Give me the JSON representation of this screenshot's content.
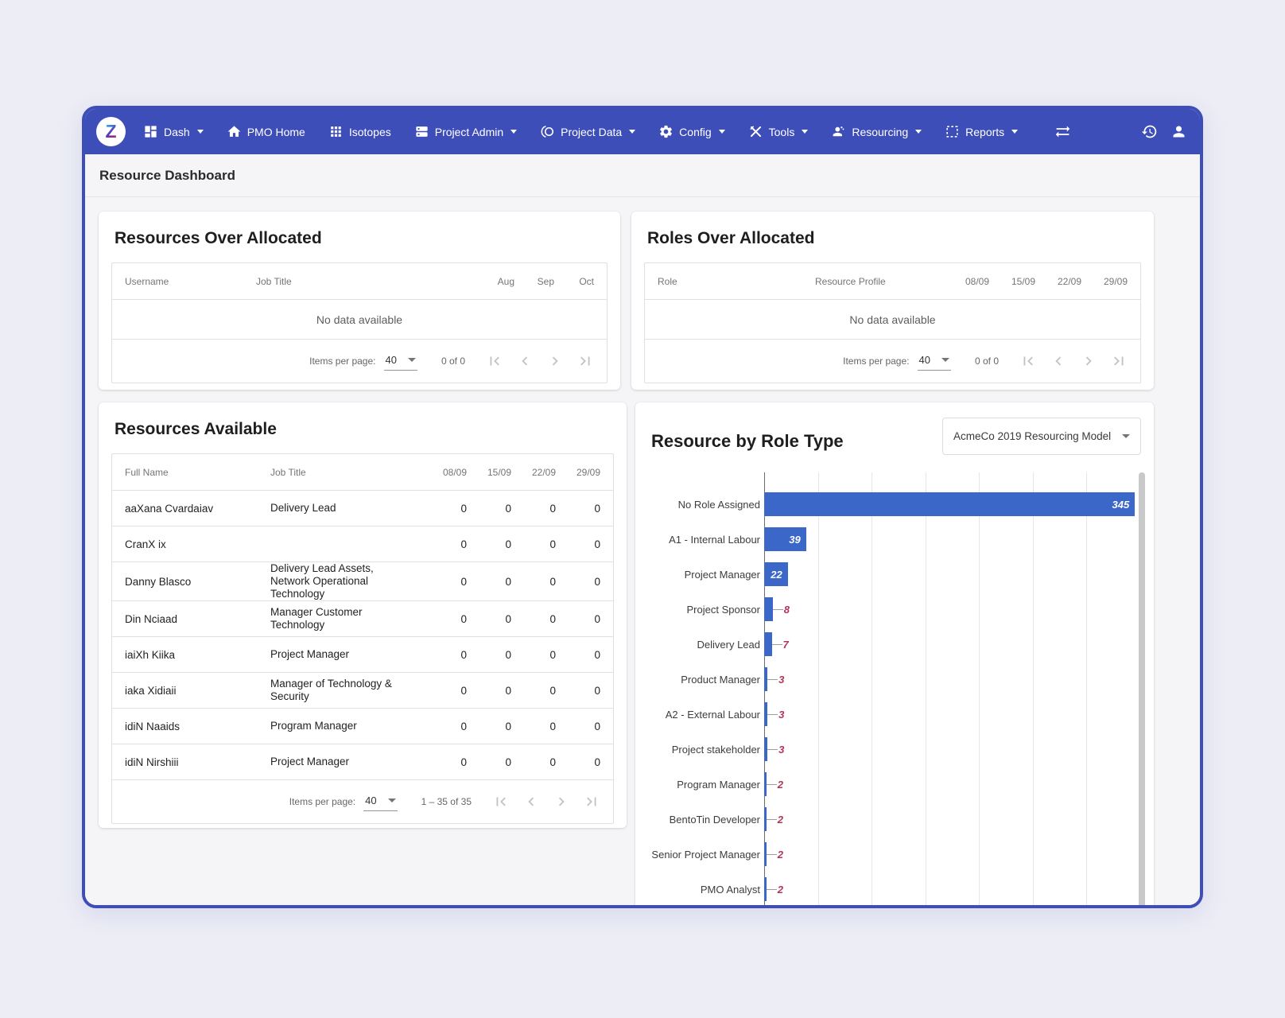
{
  "colors": {
    "accent": "#3e4eb8",
    "bar": "#3a67c8",
    "annotation_inside": "#ffffff",
    "annotation_outside": "#b23557"
  },
  "navbar": {
    "logo_letter": "Z",
    "items": [
      {
        "label": "Dash",
        "icon": "dashboard-icon",
        "dropdown": true
      },
      {
        "label": "PMO Home",
        "icon": "home-icon",
        "dropdown": false
      },
      {
        "label": "Isotopes",
        "icon": "apps-grid-icon",
        "dropdown": false
      },
      {
        "label": "Project Admin",
        "icon": "server-icon",
        "dropdown": true
      },
      {
        "label": "Project Data",
        "icon": "data-rings-icon",
        "dropdown": true
      },
      {
        "label": "Config",
        "icon": "gear-icon",
        "dropdown": true
      },
      {
        "label": "Tools",
        "icon": "tools-icon",
        "dropdown": true
      },
      {
        "label": "Resourcing",
        "icon": "people-icon",
        "dropdown": true
      },
      {
        "label": "Reports",
        "icon": "report-box-icon",
        "dropdown": true
      }
    ]
  },
  "page_title": "Resource Dashboard",
  "resources_over_allocated": {
    "title": "Resources Over Allocated",
    "columns": [
      "Username",
      "Job Title",
      "Aug",
      "Sep",
      "Oct"
    ],
    "empty_text": "No data available",
    "paginator": {
      "label": "Items per page:",
      "page_size": "40",
      "range": "0 of 0"
    }
  },
  "roles_over_allocated": {
    "title": "Roles Over Allocated",
    "columns": [
      "Role",
      "Resource Profile",
      "08/09",
      "15/09",
      "22/09",
      "29/09"
    ],
    "empty_text": "No data available",
    "paginator": {
      "label": "Items per page:",
      "page_size": "40",
      "range": "0 of 0"
    }
  },
  "resources_available": {
    "title": "Resources Available",
    "columns": [
      "Full Name",
      "Job Title",
      "08/09",
      "15/09",
      "22/09",
      "29/09"
    ],
    "rows": [
      {
        "full_name": "aaXana Cvardaiav",
        "job_title": "Delivery Lead",
        "values": [
          "0",
          "0",
          "0",
          "0"
        ]
      },
      {
        "full_name": "CranX ix",
        "job_title": "",
        "values": [
          "0",
          "0",
          "0",
          "0"
        ]
      },
      {
        "full_name": "Danny Blasco",
        "job_title": "Delivery Lead Assets, Network Operational Technology",
        "values": [
          "0",
          "0",
          "0",
          "0"
        ]
      },
      {
        "full_name": "Din Nciaad",
        "job_title": "Manager Customer Technology",
        "values": [
          "0",
          "0",
          "0",
          "0"
        ]
      },
      {
        "full_name": "iaiXh Kiika",
        "job_title": "Project Manager",
        "values": [
          "0",
          "0",
          "0",
          "0"
        ]
      },
      {
        "full_name": "iaka Xidiaii",
        "job_title": "Manager of Technology & Security",
        "values": [
          "0",
          "0",
          "0",
          "0"
        ]
      },
      {
        "full_name": "idiN Naaids",
        "job_title": "Program Manager",
        "values": [
          "0",
          "0",
          "0",
          "0"
        ]
      },
      {
        "full_name": "idiN Nirshiii",
        "job_title": "Project Manager",
        "values": [
          "0",
          "0",
          "0",
          "0"
        ]
      }
    ],
    "paginator": {
      "label": "Items per page:",
      "page_size": "40",
      "range": "1 – 35 of 35"
    }
  },
  "resource_by_role_type": {
    "title": "Resource by Role Type",
    "model_selector_value": "AcmeCo 2019 Resourcing Model"
  },
  "chart_data": {
    "type": "bar",
    "orientation": "horizontal",
    "title": "Resource by Role Type",
    "categories": [
      "No Role Assigned",
      "A1 - Internal Labour",
      "Project Manager",
      "Project Sponsor",
      "Delivery Lead",
      "Product Manager",
      "A2 - External Labour",
      "Project stakeholder",
      "Program Manager",
      "BentoTin Developer",
      "Senior Project Manager",
      "PMO Analyst"
    ],
    "values": [
      345,
      39,
      22,
      8,
      7,
      3,
      3,
      3,
      2,
      2,
      2,
      2
    ],
    "xlim": [
      0,
      350
    ],
    "gridline_interval": 50,
    "grid": true,
    "legend_position": "none",
    "bar_color": "#3a67c8",
    "annotation_inside_color": "#ffffff",
    "annotation_outside_color": "#b23557"
  }
}
